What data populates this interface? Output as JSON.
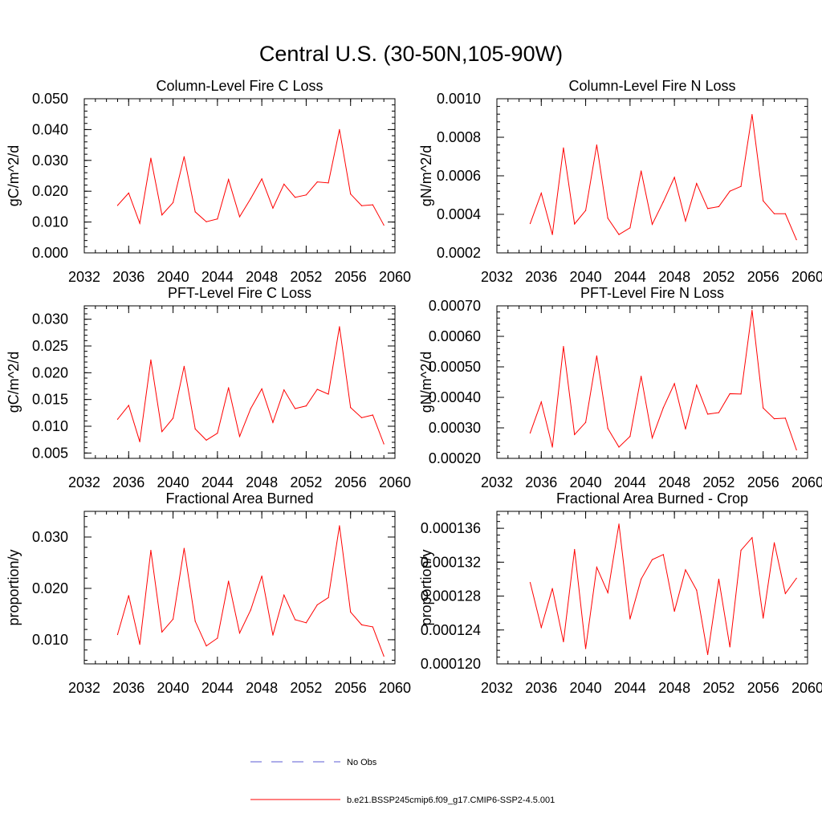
{
  "figure": {
    "title": "Central U.S. (30-50N,105-90W)"
  },
  "legend": {
    "items": [
      {
        "label": "No Obs",
        "color": "#5b5bd6",
        "style": "dashed"
      },
      {
        "label": "b.e21.BSSP245cmip6.f09_g17.CMIP6-SSP2-4.5.001",
        "color": "#ff0000",
        "style": "solid"
      }
    ]
  },
  "chart_data": [
    {
      "type": "line",
      "title": "Column-Level Fire C Loss",
      "xlabel": "",
      "ylabel": "gC/m^2/d",
      "xlim": [
        2032,
        2060
      ],
      "ylim": [
        0.0,
        0.05
      ],
      "x_ticks": [
        "2032",
        "2036",
        "2040",
        "2044",
        "2048",
        "2052",
        "2056",
        "2060"
      ],
      "y_ticks": [
        0.0,
        0.01,
        0.02,
        0.03,
        0.04,
        0.05
      ],
      "y_tick_labels": [
        "0.000",
        "0.010",
        "0.020",
        "0.030",
        "0.040",
        "0.050"
      ],
      "y_minor_step": 0.002,
      "grid": false,
      "series": [
        {
          "name": "b.e21.BSSP245cmip6.f09_g17.CMIP6-SSP2-4.5.001",
          "color": "#ff0000",
          "x": [
            2035,
            2036,
            2037,
            2038,
            2039,
            2040,
            2041,
            2042,
            2043,
            2044,
            2045,
            2046,
            2047,
            2048,
            2049,
            2050,
            2051,
            2052,
            2053,
            2054,
            2055,
            2056,
            2057,
            2058,
            2059
          ],
          "values": [
            0.0154,
            0.0194,
            0.0096,
            0.0307,
            0.0123,
            0.0163,
            0.0312,
            0.0133,
            0.0101,
            0.011,
            0.0238,
            0.0117,
            0.0176,
            0.024,
            0.0145,
            0.0223,
            0.018,
            0.0188,
            0.023,
            0.0227,
            0.04,
            0.0191,
            0.0153,
            0.0156,
            0.009
          ]
        }
      ]
    },
    {
      "type": "line",
      "title": "Column-Level Fire N Loss",
      "xlabel": "",
      "ylabel": "gN/m^2/d",
      "xlim": [
        2032,
        2060
      ],
      "ylim": [
        0.0002,
        0.001
      ],
      "x_ticks": [
        "2032",
        "2036",
        "2040",
        "2044",
        "2048",
        "2052",
        "2056",
        "2060"
      ],
      "y_ticks": [
        0.0002,
        0.0004,
        0.0006,
        0.0008,
        0.001
      ],
      "y_tick_labels": [
        "0.0002",
        "0.0004",
        "0.0006",
        "0.0008",
        "0.0010"
      ],
      "y_minor_step": 4e-05,
      "grid": false,
      "series": [
        {
          "name": "b.e21.BSSP245cmip6.f09_g17.CMIP6-SSP2-4.5.001",
          "color": "#ff0000",
          "x": [
            2035,
            2036,
            2037,
            2038,
            2039,
            2040,
            2041,
            2042,
            2043,
            2044,
            2045,
            2046,
            2047,
            2048,
            2049,
            2050,
            2051,
            2052,
            2053,
            2054,
            2055,
            2056,
            2057,
            2058,
            2059
          ],
          "values": [
            0.000352,
            0.00051,
            0.000295,
            0.000745,
            0.00035,
            0.00042,
            0.00076,
            0.00038,
            0.000295,
            0.00033,
            0.000625,
            0.000348,
            0.000465,
            0.000592,
            0.000365,
            0.00056,
            0.00043,
            0.00044,
            0.00052,
            0.000545,
            0.000918,
            0.00047,
            0.000403,
            0.000403,
            0.000268
          ]
        }
      ]
    },
    {
      "type": "line",
      "title": "PFT-Level Fire C Loss",
      "xlabel": "",
      "ylabel": "gC/m^2/d",
      "xlim": [
        2032,
        2060
      ],
      "ylim": [
        0.004,
        0.0325
      ],
      "x_ticks": [
        "2032",
        "2036",
        "2040",
        "2044",
        "2048",
        "2052",
        "2056",
        "2060"
      ],
      "y_ticks": [
        0.005,
        0.01,
        0.015,
        0.02,
        0.025,
        0.03
      ],
      "y_tick_labels": [
        "0.005",
        "0.010",
        "0.015",
        "0.020",
        "0.025",
        "0.030"
      ],
      "y_minor_step": 0.001,
      "grid": false,
      "series": [
        {
          "name": "b.e21.BSSP245cmip6.f09_g17.CMIP6-SSP2-4.5.001",
          "color": "#ff0000",
          "x": [
            2035,
            2036,
            2037,
            2038,
            2039,
            2040,
            2041,
            2042,
            2043,
            2044,
            2045,
            2046,
            2047,
            2048,
            2049,
            2050,
            2051,
            2052,
            2053,
            2054,
            2055,
            2056,
            2057,
            2058,
            2059
          ],
          "values": [
            0.0113,
            0.0139,
            0.0071,
            0.0224,
            0.009,
            0.0115,
            0.0212,
            0.0095,
            0.0074,
            0.0087,
            0.0172,
            0.0081,
            0.0133,
            0.017,
            0.0107,
            0.0168,
            0.0133,
            0.0138,
            0.0169,
            0.016,
            0.0286,
            0.0135,
            0.0116,
            0.0121,
            0.0067
          ]
        }
      ]
    },
    {
      "type": "line",
      "title": "PFT-Level Fire N Loss",
      "xlabel": "",
      "ylabel": "gN/m^2/d",
      "xlim": [
        2032,
        2060
      ],
      "ylim": [
        0.0002,
        0.0007
      ],
      "x_ticks": [
        "2032",
        "2036",
        "2040",
        "2044",
        "2048",
        "2052",
        "2056",
        "2060"
      ],
      "y_ticks": [
        0.0002,
        0.0003,
        0.0004,
        0.0005,
        0.0006,
        0.0007
      ],
      "y_tick_labels": [
        "0.00020",
        "0.00030",
        "0.00040",
        "0.00050",
        "0.00060",
        "0.00070"
      ],
      "y_minor_step": 2e-05,
      "grid": false,
      "series": [
        {
          "name": "b.e21.BSSP245cmip6.f09_g17.CMIP6-SSP2-4.5.001",
          "color": "#ff0000",
          "x": [
            2035,
            2036,
            2037,
            2038,
            2039,
            2040,
            2041,
            2042,
            2043,
            2044,
            2045,
            2046,
            2047,
            2048,
            2049,
            2050,
            2051,
            2052,
            2053,
            2054,
            2055,
            2056,
            2057,
            2058,
            2059
          ],
          "values": [
            0.000283,
            0.000385,
            0.000237,
            0.000567,
            0.000278,
            0.000318,
            0.000536,
            0.000298,
            0.000237,
            0.000272,
            0.000469,
            0.000267,
            0.000366,
            0.000445,
            0.000296,
            0.00044,
            0.000345,
            0.00035,
            0.000412,
            0.000411,
            0.000685,
            0.000365,
            0.00033,
            0.000332,
            0.000228
          ]
        }
      ]
    },
    {
      "type": "line",
      "title": "Fractional Area Burned",
      "xlabel": "",
      "ylabel": "proportion/y",
      "xlim": [
        2032,
        2060
      ],
      "ylim": [
        0.0053,
        0.035
      ],
      "x_ticks": [
        "2032",
        "2036",
        "2040",
        "2044",
        "2048",
        "2052",
        "2056",
        "2060"
      ],
      "y_ticks": [
        0.01,
        0.02,
        0.03
      ],
      "y_tick_labels": [
        "0.010",
        "0.020",
        "0.030"
      ],
      "y_minor_step": 0.002,
      "grid": false,
      "series": [
        {
          "name": "b.e21.BSSP245cmip6.f09_g17.CMIP6-SSP2-4.5.001",
          "color": "#ff0000",
          "x": [
            2035,
            2036,
            2037,
            2038,
            2039,
            2040,
            2041,
            2042,
            2043,
            2044,
            2045,
            2046,
            2047,
            2048,
            2049,
            2050,
            2051,
            2052,
            2053,
            2054,
            2055,
            2056,
            2057,
            2058,
            2059
          ],
          "values": [
            0.011,
            0.0186,
            0.0091,
            0.0274,
            0.0115,
            0.014,
            0.0278,
            0.0136,
            0.0088,
            0.0103,
            0.0214,
            0.0113,
            0.0158,
            0.0224,
            0.0109,
            0.0187,
            0.0139,
            0.0133,
            0.0168,
            0.0182,
            0.0322,
            0.0154,
            0.0129,
            0.0125,
            0.0068
          ]
        }
      ]
    },
    {
      "type": "line",
      "title": "Fractional Area Burned - Crop",
      "xlabel": "",
      "ylabel": "proportion/y",
      "xlim": [
        2032,
        2060
      ],
      "ylim": [
        0.00012,
        0.000138
      ],
      "x_ticks": [
        "2032",
        "2036",
        "2040",
        "2044",
        "2048",
        "2052",
        "2056",
        "2060"
      ],
      "y_ticks": [
        0.00012,
        0.000124,
        0.000128,
        0.000132,
        0.000136
      ],
      "y_tick_labels": [
        "0.000120",
        "0.000124",
        "0.000128",
        "0.000132",
        "0.000136"
      ],
      "y_minor_step": 8e-07,
      "grid": false,
      "series": [
        {
          "name": "b.e21.BSSP245cmip6.f09_g17.CMIP6-SSP2-4.5.001",
          "color": "#ff0000",
          "x": [
            2035,
            2036,
            2037,
            2038,
            2039,
            2040,
            2041,
            2042,
            2043,
            2044,
            2045,
            2046,
            2047,
            2048,
            2049,
            2050,
            2051,
            2052,
            2053,
            2054,
            2055,
            2056,
            2057,
            2058,
            2059
          ],
          "values": [
            0.0001296,
            0.0001243,
            0.0001289,
            0.0001226,
            0.0001335,
            0.0001218,
            0.0001314,
            0.0001284,
            0.0001365,
            0.0001253,
            0.00013,
            0.0001323,
            0.0001329,
            0.0001262,
            0.0001311,
            0.0001287,
            0.0001211,
            0.00013,
            0.000122,
            0.0001334,
            0.0001349,
            0.0001254,
            0.0001343,
            0.0001283,
            0.0001301
          ]
        }
      ]
    }
  ]
}
